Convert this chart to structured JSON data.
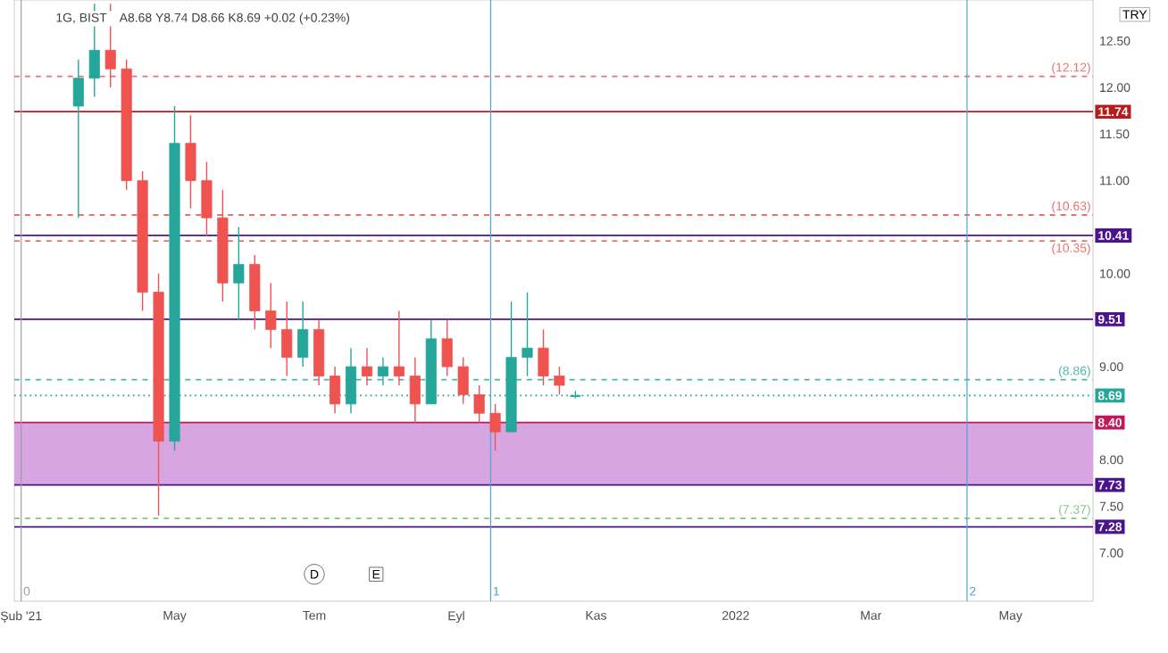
{
  "chart_data": {
    "type": "candlestick",
    "title": "1G, BIST",
    "subtitle": "A8.68 Y8.74 D8.66 K8.69 +0.02 (+0.23%)",
    "x": [
      "2021-03-20",
      "2021-03-27",
      "2021-04-03",
      "2021-04-10",
      "2021-04-17",
      "2021-04-24",
      "2021-05-01",
      "2021-05-08",
      "2021-05-15",
      "2021-05-22",
      "2021-05-29",
      "2021-06-05",
      "2021-06-12",
      "2021-06-19",
      "2021-06-26",
      "2021-07-03",
      "2021-07-10",
      "2021-07-17",
      "2021-07-24",
      "2021-07-31",
      "2021-08-07",
      "2021-08-14",
      "2021-08-21",
      "2021-08-28",
      "2021-09-04",
      "2021-09-11",
      "2021-09-18",
      "2021-09-25",
      "2021-10-02",
      "2021-10-09",
      "2021-10-16",
      "2021-10-23"
    ],
    "ohlc": [
      [
        11.8,
        12.3,
        10.6,
        12.1
      ],
      [
        12.1,
        12.9,
        11.9,
        12.4
      ],
      [
        12.4,
        12.9,
        12.0,
        12.2
      ],
      [
        12.2,
        12.3,
        10.9,
        11.0
      ],
      [
        11.0,
        11.1,
        9.6,
        9.8
      ],
      [
        9.8,
        10.0,
        7.4,
        8.2
      ],
      [
        8.2,
        11.8,
        8.1,
        11.4
      ],
      [
        11.4,
        11.7,
        10.7,
        11.0
      ],
      [
        11.0,
        11.2,
        10.4,
        10.6
      ],
      [
        10.6,
        10.9,
        9.7,
        9.9
      ],
      [
        9.9,
        10.5,
        9.5,
        10.1
      ],
      [
        10.1,
        10.2,
        9.4,
        9.6
      ],
      [
        9.6,
        9.9,
        9.2,
        9.4
      ],
      [
        9.4,
        9.7,
        8.9,
        9.1
      ],
      [
        9.1,
        9.7,
        9.0,
        9.4
      ],
      [
        9.4,
        9.5,
        8.8,
        8.9
      ],
      [
        8.9,
        9.0,
        8.5,
        8.6
      ],
      [
        8.6,
        9.2,
        8.5,
        9.0
      ],
      [
        9.0,
        9.2,
        8.8,
        8.9
      ],
      [
        8.9,
        9.1,
        8.8,
        9.0
      ],
      [
        9.0,
        9.6,
        8.8,
        8.9
      ],
      [
        8.9,
        9.1,
        8.4,
        8.6
      ],
      [
        8.6,
        9.5,
        8.6,
        9.3
      ],
      [
        9.3,
        9.5,
        8.9,
        9.0
      ],
      [
        9.0,
        9.1,
        8.6,
        8.7
      ],
      [
        8.7,
        8.8,
        8.4,
        8.5
      ],
      [
        8.5,
        8.6,
        8.1,
        8.3
      ],
      [
        8.3,
        9.7,
        8.3,
        9.1
      ],
      [
        9.1,
        9.8,
        8.9,
        9.2
      ],
      [
        9.2,
        9.4,
        8.8,
        8.9
      ],
      [
        8.9,
        9.0,
        8.7,
        8.8
      ],
      [
        8.68,
        8.74,
        8.66,
        8.69
      ]
    ],
    "colors": [
      "#26a69a",
      "#26a69a",
      "#ef5350",
      "#ef5350",
      "#ef5350",
      "#ef5350",
      "#26a69a",
      "#ef5350",
      "#ef5350",
      "#ef5350",
      "#26a69a",
      "#ef5350",
      "#ef5350",
      "#ef5350",
      "#26a69a",
      "#ef5350",
      "#ef5350",
      "#26a69a",
      "#ef5350",
      "#26a69a",
      "#ef5350",
      "#ef5350",
      "#26a69a",
      "#ef5350",
      "#ef5350",
      "#ef5350",
      "#ef5350",
      "#26a69a",
      "#26a69a",
      "#ef5350",
      "#ef5350",
      "#26a69a"
    ],
    "xlim": [
      "2021-02-20",
      "2022-06-06"
    ],
    "ylim": [
      6.48,
      12.94
    ],
    "xticks": [
      {
        "value": "2021-02-23",
        "label": "Şub '21"
      },
      {
        "value": "2021-05-01",
        "label": "May"
      },
      {
        "value": "2021-07-01",
        "label": "Tem"
      },
      {
        "value": "2021-09-01",
        "label": "Eyl"
      },
      {
        "value": "2021-11-01",
        "label": "Kas"
      },
      {
        "value": "2022-01-01",
        "label": "2022"
      },
      {
        "value": "2022-03-01",
        "label": "Mar"
      },
      {
        "value": "2022-05-01",
        "label": "May"
      }
    ],
    "yticks": [
      {
        "value": 7.0,
        "label": "7.00"
      },
      {
        "value": 7.5,
        "label": "7.50"
      },
      {
        "value": 8.0,
        "label": "8.00"
      },
      {
        "value": 9.0,
        "label": "9.00"
      },
      {
        "value": 10.0,
        "label": "10.00"
      },
      {
        "value": 11.0,
        "label": "11.00"
      },
      {
        "value": 11.5,
        "label": "11.50"
      },
      {
        "value": 12.0,
        "label": "12.00"
      },
      {
        "value": 12.5,
        "label": "12.50"
      }
    ],
    "ref_lines": [
      {
        "axis": "y",
        "value": 11.74,
        "label": "11.74",
        "color": "#b71c1c",
        "line_style": "solid"
      },
      {
        "axis": "y",
        "value": 10.41,
        "label": "10.41",
        "color": "#4a148c",
        "line_style": "solid"
      },
      {
        "axis": "y",
        "value": 9.51,
        "label": "9.51",
        "color": "#4a148c",
        "line_style": "solid"
      },
      {
        "axis": "y",
        "value": 8.4,
        "label": "8.40",
        "color": "#c2185b",
        "line_style": "solid"
      },
      {
        "axis": "y",
        "value": 7.73,
        "label": "7.73",
        "color": "#4a148c",
        "line_style": "solid"
      },
      {
        "axis": "y",
        "value": 7.28,
        "label": "7.28",
        "color": "#4a148c",
        "line_style": "solid"
      },
      {
        "axis": "y",
        "value": 8.69,
        "label": "8.69",
        "color": "#26a69a",
        "line_style": "dotted"
      },
      {
        "axis": "y",
        "value": 12.12,
        "label": "(12.12)",
        "color": "#e57373",
        "line_style": "dashed"
      },
      {
        "axis": "y",
        "value": 10.63,
        "label": "(10.63)",
        "color": "#e57373",
        "line_style": "dashed"
      },
      {
        "axis": "y",
        "value": 10.35,
        "label": "(10.35)",
        "color": "#e57373",
        "line_style": "dashed"
      },
      {
        "axis": "y",
        "value": 8.86,
        "label": "(8.86)",
        "color": "#4db6ac",
        "line_style": "dashed"
      },
      {
        "axis": "y",
        "value": 7.37,
        "label": "(7.37)",
        "color": "#81c784",
        "line_style": "dashed"
      },
      {
        "axis": "x",
        "value": "2021-02-23",
        "label": "0",
        "color": "#9e9e9e",
        "line_style": "solid"
      },
      {
        "axis": "x",
        "value": "2021-09-16",
        "label": "1",
        "color": "#4fa3d1",
        "line_style": "solid"
      },
      {
        "axis": "x",
        "value": "2022-04-12",
        "label": "2",
        "color": "#4fa3d1",
        "line_style": "solid"
      }
    ],
    "bands": [
      {
        "axis": "y",
        "from": 7.73,
        "to": 8.4,
        "label": null,
        "color": "#d7a6e0"
      }
    ],
    "annotations": [
      "TRY",
      {
        "text": "D",
        "x": "2021-07-01",
        "y": 6.77
      },
      {
        "text": "E",
        "x": "2021-07-28",
        "y": 6.77
      }
    ]
  }
}
